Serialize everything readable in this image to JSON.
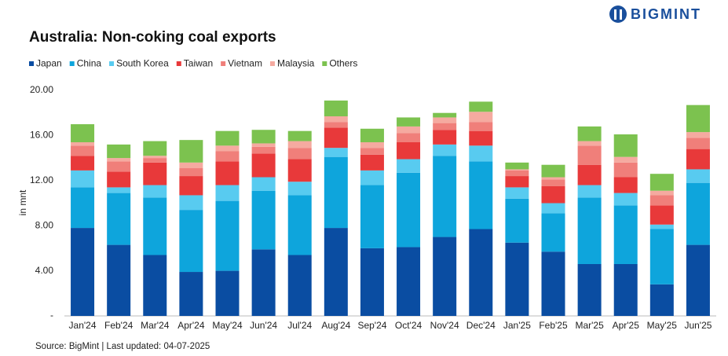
{
  "brand": "BIGMINT",
  "chart_data": {
    "type": "stacked_bar",
    "title": "Australia: Non-coking coal exports",
    "y_label": "in mnt",
    "source": "Source: BigMint | Last updated: 04-07-2025",
    "categories": [
      "Jan'24",
      "Feb'24",
      "Mar'24",
      "Apr'24",
      "May'24",
      "Jun'24",
      "Jul'24",
      "Aug'24",
      "Sep'24",
      "Oct'24",
      "Nov'24",
      "Dec'24",
      "Jan'25",
      "Feb'25",
      "Mar'25",
      "Apr'25",
      "May'25",
      "Jun'25"
    ],
    "series": [
      {
        "name": "Japan",
        "color": "#0a4da2",
        "values": [
          7.8,
          6.3,
          5.4,
          3.9,
          4.0,
          5.9,
          5.4,
          7.8,
          6.0,
          6.1,
          7.0,
          7.7,
          6.5,
          5.7,
          4.6,
          4.6,
          2.8,
          6.3
        ]
      },
      {
        "name": "China",
        "color": "#0ea5dc",
        "values": [
          3.6,
          4.6,
          5.1,
          5.5,
          6.2,
          5.2,
          5.3,
          6.3,
          5.6,
          6.6,
          7.2,
          6.0,
          3.9,
          3.4,
          5.9,
          5.2,
          4.9,
          5.5
        ]
      },
      {
        "name": "South Korea",
        "color": "#58cbf0",
        "values": [
          1.5,
          0.5,
          1.1,
          1.3,
          1.4,
          1.2,
          1.2,
          0.8,
          1.3,
          1.2,
          1.0,
          1.4,
          1.0,
          0.9,
          1.1,
          1.1,
          0.4,
          1.2
        ]
      },
      {
        "name": "Taiwan",
        "color": "#e8393a",
        "values": [
          1.3,
          1.4,
          2.0,
          1.7,
          2.1,
          2.1,
          2.0,
          1.8,
          1.4,
          1.5,
          1.3,
          1.3,
          1.0,
          1.5,
          1.8,
          1.4,
          1.7,
          1.8
        ]
      },
      {
        "name": "Vietnam",
        "color": "#f07f7a",
        "values": [
          0.9,
          0.9,
          0.4,
          0.7,
          0.9,
          0.6,
          1.0,
          0.5,
          0.6,
          0.8,
          0.6,
          0.8,
          0.5,
          0.6,
          1.7,
          1.3,
          0.9,
          1.0
        ]
      },
      {
        "name": "Malaysia",
        "color": "#f5aaa0",
        "values": [
          0.3,
          0.3,
          0.2,
          0.5,
          0.5,
          0.3,
          0.6,
          0.5,
          0.5,
          0.6,
          0.5,
          0.9,
          0.1,
          0.2,
          0.4,
          0.5,
          0.4,
          0.5
        ]
      },
      {
        "name": "Others",
        "color": "#7cc24f",
        "values": [
          1.6,
          1.2,
          1.3,
          2.0,
          1.3,
          1.2,
          0.9,
          1.4,
          1.2,
          0.8,
          0.4,
          0.9,
          0.6,
          1.1,
          1.3,
          2.0,
          1.5,
          2.4
        ]
      }
    ],
    "ylim": [
      0,
      20
    ],
    "yticks": [
      {
        "value": 0,
        "label": "-"
      },
      {
        "value": 4,
        "label": "4.00"
      },
      {
        "value": 8,
        "label": "8.00"
      },
      {
        "value": 12,
        "label": "12.00"
      },
      {
        "value": 16,
        "label": "16.00"
      },
      {
        "value": 20,
        "label": "20.00"
      }
    ],
    "grid": false,
    "legend": "top-left"
  }
}
